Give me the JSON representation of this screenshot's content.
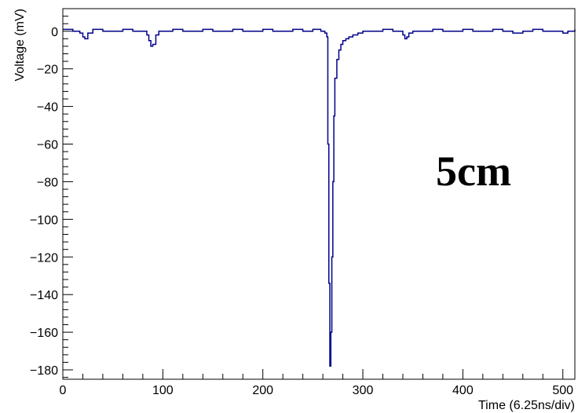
{
  "chart_data": {
    "type": "line",
    "xlabel": "Time (6.25ns/div)",
    "ylabel": "Voltage (mV)",
    "annotation": "5cm",
    "xlim": [
      0,
      512
    ],
    "ylim": [
      -185,
      12
    ],
    "x_ticks": [
      0,
      100,
      200,
      300,
      400,
      500
    ],
    "x_tick_labels": [
      "0",
      "100",
      "200",
      "300",
      "400",
      "500"
    ],
    "y_ticks": [
      0,
      -20,
      -40,
      -60,
      -80,
      -100,
      -120,
      -140,
      -160,
      -180
    ],
    "y_tick_labels": [
      "0",
      "−20",
      "−40",
      "−60",
      "−80",
      "−100",
      "−120",
      "−140",
      "−160",
      "−180"
    ],
    "grid": false,
    "series": [
      {
        "color": "#00008b",
        "x": [
          0,
          10,
          17,
          20,
          22,
          25,
          30,
          40,
          50,
          60,
          70,
          80,
          84,
          86,
          88,
          90,
          93,
          96,
          100,
          110,
          120,
          130,
          140,
          150,
          160,
          170,
          180,
          190,
          200,
          210,
          220,
          230,
          240,
          250,
          258,
          262,
          264,
          265,
          266,
          267,
          268,
          269,
          270,
          271,
          272,
          274,
          276,
          278,
          280,
          283,
          286,
          290,
          295,
          300,
          310,
          320,
          330,
          340,
          342,
          344,
          346,
          350,
          360,
          370,
          380,
          390,
          400,
          410,
          420,
          430,
          440,
          450,
          460,
          470,
          480,
          490,
          500,
          505,
          510,
          512
        ],
        "y": [
          1,
          0,
          -1,
          -3,
          -4,
          -1,
          1,
          0,
          0,
          1,
          0,
          0,
          -2,
          -5,
          -8,
          -7,
          -2,
          0,
          0,
          1,
          0,
          0,
          1,
          0,
          0,
          1,
          0,
          0,
          1,
          0,
          0,
          1,
          0,
          1,
          0,
          -1,
          -3,
          -60,
          -134,
          -178,
          -160,
          -120,
          -80,
          -45,
          -25,
          -15,
          -10,
          -7,
          -5,
          -4,
          -3,
          -2,
          -1,
          0,
          0,
          1,
          0,
          -2,
          -4,
          -3,
          -1,
          0,
          0,
          1,
          0,
          0,
          1,
          0,
          0,
          1,
          0,
          -1,
          0,
          1,
          0,
          0,
          -1,
          0,
          0,
          1
        ]
      }
    ]
  }
}
